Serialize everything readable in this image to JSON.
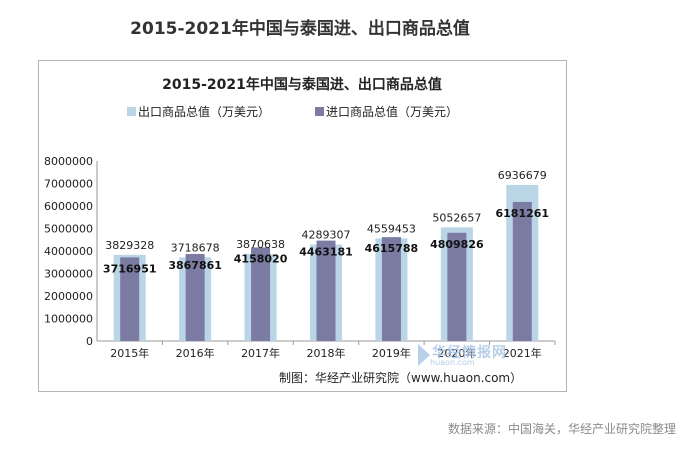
{
  "page_title": "2015-2021年中国与泰国进、出口商品总值",
  "source_text": "数据来源：中国海关，华经产业研究院整理",
  "watermark": {
    "text": "华经情报网",
    "sub": "huaon.com"
  },
  "chart_data": {
    "type": "bar",
    "title": "2015-2021年中国与泰国进、出口商品总值",
    "categories": [
      "2015年",
      "2016年",
      "2017年",
      "2018年",
      "2019年",
      "2020年",
      "2021年"
    ],
    "series": [
      {
        "name": "出口商品总值（万美元）",
        "color": "#b9d5e6",
        "values": [
          3829328,
          3718678,
          3870638,
          4289307,
          4559453,
          5052657,
          6936679
        ]
      },
      {
        "name": "进口商品总值（万美元）",
        "color": "#7b7ba3",
        "values": [
          3716951,
          3867861,
          4158020,
          4463181,
          4615788,
          4809826,
          6181261
        ]
      }
    ],
    "ylim": [
      0,
      8000000
    ],
    "yticks": [
      "0",
      "1000000",
      "2000000",
      "3000000",
      "4000000",
      "5000000",
      "6000000",
      "7000000",
      "8000000"
    ],
    "xlabel": "",
    "ylabel": "",
    "legend": "top",
    "credit": "制图：华经产业研究院（www.huaon.com）"
  }
}
